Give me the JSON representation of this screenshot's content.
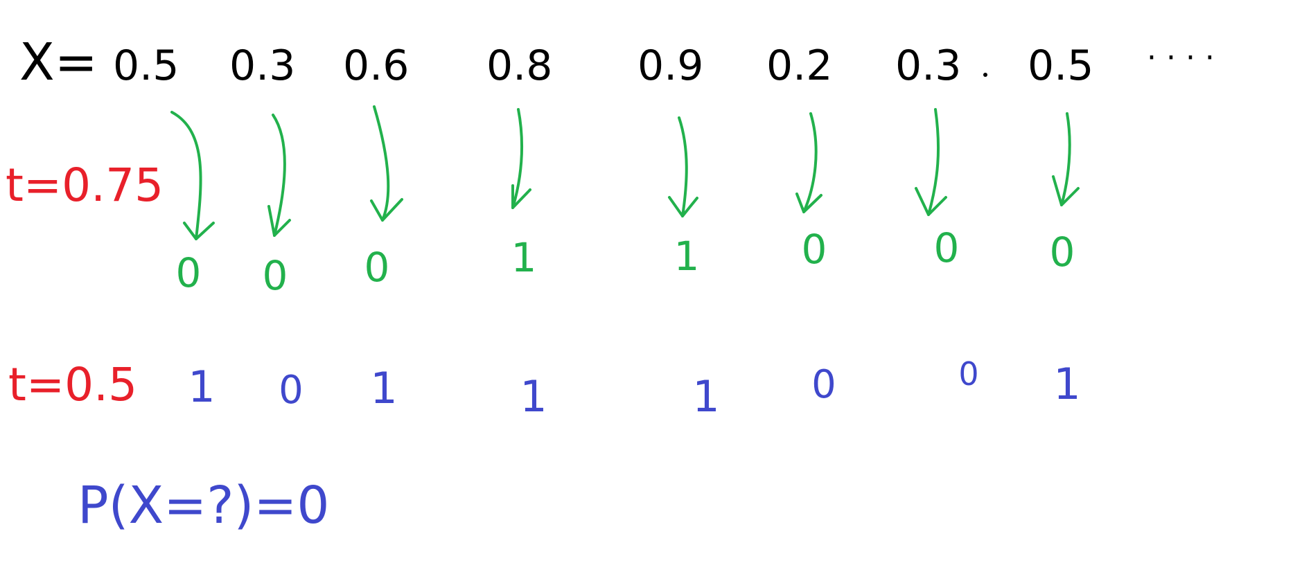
{
  "colors": {
    "background": "#ffffff",
    "x_row": "#000000",
    "t_label": "#e8202a",
    "green": "#22b14c",
    "blue": "#3f48cc"
  },
  "x_row": {
    "prefix": "X=",
    "values": [
      "0.5",
      "0.3",
      "0.6",
      "0.8",
      "0.9",
      "0.2",
      "0.3",
      "0.5"
    ],
    "ellipsis": "· · · ·"
  },
  "threshold_075": {
    "label": "t=0.75",
    "outputs": [
      "0",
      "0",
      "0",
      "1",
      "1",
      "0",
      "0",
      "0"
    ]
  },
  "threshold_05": {
    "label": "t=0.5",
    "outputs": [
      "1",
      "0",
      "1",
      "1",
      "1",
      "0",
      "0",
      "1"
    ]
  },
  "probability": {
    "text": "P(X=?)=0"
  }
}
